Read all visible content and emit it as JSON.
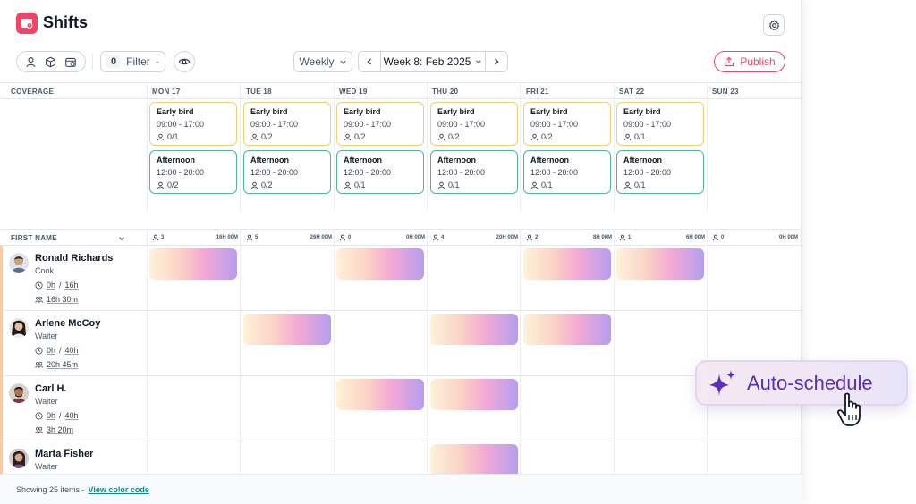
{
  "app": {
    "title": "Shifts"
  },
  "toolbar": {
    "filter_count": "0",
    "filter_label": "Filter",
    "view_mode": "Weekly",
    "week_label": "Week 8: Feb 2025",
    "publish_label": "Publish"
  },
  "coverage": {
    "label": "COVERAGE",
    "days": [
      {
        "name": "MON 17",
        "early": {
          "title": "Early bird",
          "time": "09:00 - 17:00",
          "count": "0/1"
        },
        "afternoon": {
          "title": "Afternoon",
          "time": "12:00 - 20:00",
          "count": "0/2"
        }
      },
      {
        "name": "TUE 18",
        "early": {
          "title": "Early bird",
          "time": "09:00 - 17:00",
          "count": "0/2"
        },
        "afternoon": {
          "title": "Afternoon",
          "time": "12:00 - 20:00",
          "count": "0/2"
        }
      },
      {
        "name": "WED 19",
        "early": {
          "title": "Early bird",
          "time": "09:00 - 17:00",
          "count": "0/2"
        },
        "afternoon": {
          "title": "Afternoon",
          "time": "12:00 - 20:00",
          "count": "0/1"
        }
      },
      {
        "name": "THU 20",
        "early": {
          "title": "Early bird",
          "time": "09:00 - 17:00",
          "count": "0/2"
        },
        "afternoon": {
          "title": "Afternoon",
          "time": "12:00 - 20:00",
          "count": "0/1"
        }
      },
      {
        "name": "FRI 21",
        "early": {
          "title": "Early bird",
          "time": "09:00 - 17:00",
          "count": "0/2"
        },
        "afternoon": {
          "title": "Afternoon",
          "time": "12:00 - 20:00",
          "count": "0/1"
        }
      },
      {
        "name": "SAT 22",
        "early": {
          "title": "Early bird",
          "time": "09:00 - 17:00",
          "count": "0/1"
        },
        "afternoon": {
          "title": "Afternoon",
          "time": "12:00 - 20:00",
          "count": "0/1"
        }
      },
      {
        "name": "SUN 23"
      }
    ]
  },
  "employees_header": {
    "label": "FIRST NAME",
    "columns": [
      {
        "count": "3",
        "hours": "16H 00M"
      },
      {
        "count": "5",
        "hours": "26H 00M"
      },
      {
        "count": "0",
        "hours": "0H 00M"
      },
      {
        "count": "4",
        "hours": "20H 00M"
      },
      {
        "count": "2",
        "hours": "8H 00M"
      },
      {
        "count": "1",
        "hours": "6H 00M"
      },
      {
        "count": "0",
        "hours": "0H 00M"
      }
    ]
  },
  "employees": [
    {
      "name": "Ronald Richards",
      "role": "Cook",
      "hours_done": "0h",
      "hours_target": "16h",
      "planned": "16h 30m",
      "skin": "#c9a27e",
      "hair": "#3b2a20",
      "shirt": "#5a6f8c"
    },
    {
      "name": "Arlene McCoy",
      "role": "Waiter",
      "hours_done": "0h",
      "hours_target": "40h",
      "planned": "20h 45m",
      "skin": "#e6bfa0",
      "hair": "#1f1a17",
      "shirt": "#eeeeee"
    },
    {
      "name": "Carl H.",
      "role": "Waiter",
      "hours_done": "0h",
      "hours_target": "40h",
      "planned": "3h 20m",
      "skin": "#a8745a",
      "hair": "#241812",
      "shirt": "#7a3b3b"
    },
    {
      "name": "Marta Fisher",
      "role": "Waiter",
      "skin": "#d8a88a",
      "hair": "#2d1f18",
      "shirt": "#6b5c7a"
    }
  ],
  "footer": {
    "showing": "Showing 25 items -",
    "link": "View color code"
  },
  "auto_schedule": {
    "label": "Auto-schedule"
  },
  "colors": {
    "brand": "#ef4466",
    "early_border": "#f2cf72",
    "afternoon_border": "#52b69a",
    "accent_purple": "#5b2fb8",
    "link_teal": "#0f8a8a"
  },
  "icons": [
    "shifts-logo-icon",
    "gear-icon",
    "person-icon",
    "cube-icon",
    "calendar-icon",
    "chevron-down-icon",
    "eye-icon",
    "chevron-left-icon",
    "chevron-right-icon",
    "upload-icon",
    "people-icon",
    "clock-icon",
    "sparkle-icon",
    "hand-cursor-icon"
  ]
}
